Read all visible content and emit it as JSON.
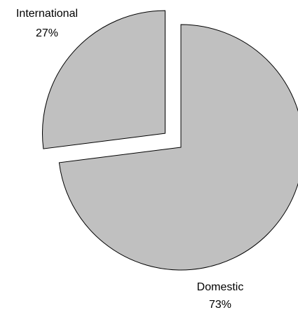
{
  "chart_data": {
    "type": "pie",
    "slices": [
      {
        "label": "Domestic",
        "percent_label": "73%",
        "value": 73,
        "exploded": false
      },
      {
        "label": "International",
        "percent_label": "27%",
        "value": 27,
        "exploded": true
      }
    ],
    "slice_color": "#c0c0c0",
    "outline_color": "#000000",
    "legend": "none"
  }
}
